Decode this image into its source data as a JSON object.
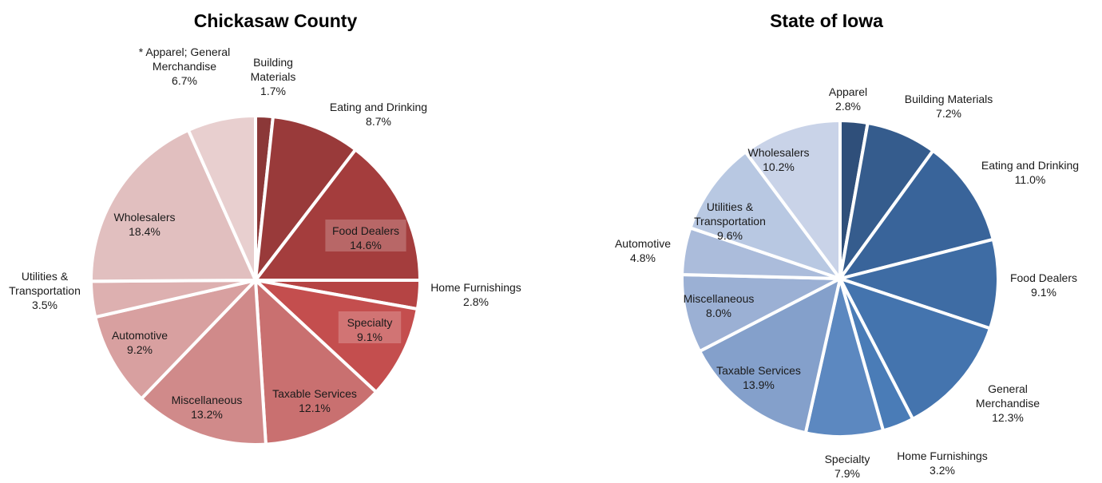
{
  "chart_data": [
    {
      "type": "pie",
      "title": "Chickasaw County",
      "unit": "%",
      "categories": [
        "Building Materials",
        "Eating and Drinking",
        "Food Dealers",
        "Home Furnishings",
        "Specialty",
        "Taxable Services",
        "Miscellaneous",
        "Automotive",
        "Utilities & Transportation",
        "Wholesalers",
        "* Apparel; General Merchandise"
      ],
      "label_lines": [
        [
          "Building",
          "Materials"
        ],
        [
          "Eating and Drinking"
        ],
        [
          "Food Dealers"
        ],
        [
          "Home Furnishings"
        ],
        [
          "Specialty"
        ],
        [
          "Taxable Services"
        ],
        [
          "Miscellaneous"
        ],
        [
          "Automotive"
        ],
        [
          "Utilities &",
          "Transportation"
        ],
        [
          "Wholesalers"
        ],
        [
          "* Apparel; General",
          "Merchandise"
        ]
      ],
      "values": [
        1.7,
        8.7,
        14.6,
        2.8,
        9.1,
        12.1,
        13.2,
        9.2,
        3.5,
        18.4,
        6.7
      ],
      "value_labels": [
        "1.7%",
        "8.7%",
        "14.6%",
        "2.8%",
        "9.1%",
        "12.1%",
        "13.2%",
        "9.2%",
        "3.5%",
        "18.4%",
        "6.7%"
      ],
      "colors": [
        "#8B3838",
        "#993A3A",
        "#A43D3D",
        "#B54444",
        "#C44E4E",
        "#C97070",
        "#D08A8A",
        "#D8A0A0",
        "#DDB0B0",
        "#E1BFBF",
        "#E8CFCF"
      ],
      "boxed_labels": [
        "Food Dealers",
        "Specialty"
      ],
      "start_angle": "12 o'clock",
      "direction": "clockwise"
    },
    {
      "type": "pie",
      "title": "State of Iowa",
      "unit": "%",
      "categories": [
        "Apparel",
        "Building Materials",
        "Eating and Drinking",
        "Food Dealers",
        "General Merchandise",
        "Home Furnishings",
        "Specialty",
        "Taxable Services",
        "Miscellaneous",
        "Automotive",
        "Utilities & Transportation",
        "Wholesalers"
      ],
      "label_lines": [
        [
          "Apparel"
        ],
        [
          "Building Materials"
        ],
        [
          "Eating and Drinking"
        ],
        [
          "Food Dealers"
        ],
        [
          "General",
          "Merchandise"
        ],
        [
          "Home Furnishings"
        ],
        [
          "Specialty"
        ],
        [
          "Taxable Services"
        ],
        [
          "Miscellaneous"
        ],
        [
          "Automotive"
        ],
        [
          "Utilities &",
          "Transportation"
        ],
        [
          "Wholesalers"
        ]
      ],
      "values": [
        2.8,
        7.2,
        11.0,
        9.1,
        12.3,
        3.2,
        7.9,
        13.9,
        8.0,
        4.8,
        9.6,
        10.2
      ],
      "value_labels": [
        "2.8%",
        "7.2%",
        "11.0%",
        "9.1%",
        "12.3%",
        "3.2%",
        "7.9%",
        "13.9%",
        "8.0%",
        "4.8%",
        "9.6%",
        "10.2%"
      ],
      "colors": [
        "#2F4F7A",
        "#355C8D",
        "#39649A",
        "#3E6CA4",
        "#4474AE",
        "#4A7CB7",
        "#5C88C0",
        "#84A0CB",
        "#9BB0D4",
        "#ABBCDB",
        "#B8C8E2",
        "#C9D3E8"
      ],
      "boxed_labels": [],
      "start_angle": "12 o'clock",
      "direction": "clockwise"
    }
  ]
}
